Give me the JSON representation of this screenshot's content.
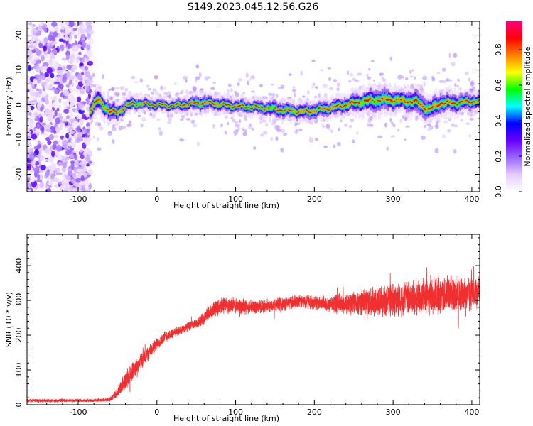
{
  "figure": {
    "title": "S149.2023.045.12.56.G26"
  },
  "chart_data": [
    {
      "type": "heatmap",
      "xlabel": "Height of straight line (km)",
      "ylabel": "Frequency (Hz)",
      "xlim": [
        -165,
        410
      ],
      "ylim": [
        -25,
        24
      ],
      "xticks": [
        -100,
        0,
        100,
        200,
        300,
        400
      ],
      "yticks": [
        -20,
        -10,
        0,
        10,
        20
      ],
      "grid": false,
      "colorbar": {
        "label": "Normalized spectral amplitude",
        "range": [
          0,
          0.96
        ],
        "ticks": [
          "0.0",
          "0.2",
          "0.4",
          "0.6",
          "0.8"
        ],
        "tick_values": [
          0,
          0.2,
          0.4,
          0.6,
          0.8
        ],
        "colormap": [
          "#ffffff",
          "#e6ccff",
          "#9966ff",
          "#6600ff",
          "#0000ff",
          "#00ffff",
          "#00ff00",
          "#ffff00",
          "#ff8000",
          "#ff0000",
          "#ff0080"
        ]
      },
      "noise_region": {
        "x": [
          -165,
          -83
        ],
        "typical_amplitude": 0.25
      },
      "ridge": {
        "description_points_x": [
          -85,
          -75,
          -60,
          -50,
          -40,
          -30,
          -20,
          0,
          20,
          40,
          55,
          70,
          90,
          110,
          130,
          150,
          170,
          190,
          210,
          230,
          250,
          270,
          290,
          310,
          330,
          345,
          360,
          380,
          400,
          410
        ],
        "frequency_hz": [
          -1.5,
          1.5,
          -2,
          -2.2,
          -0.5,
          0.5,
          0.2,
          0,
          -0.3,
          0.2,
          0.6,
          0.5,
          -0.2,
          -0.5,
          -0.8,
          -1.2,
          -1.8,
          -2,
          -1.3,
          -0.5,
          0.5,
          1.2,
          1.5,
          1.2,
          0.8,
          -1.5,
          0.5,
          0.5,
          1.0,
          0.9
        ],
        "width_hz": [
          4,
          5,
          4,
          3.5,
          3,
          3,
          2.5,
          2.5,
          2.5,
          3,
          3.5,
          3,
          3,
          3,
          3,
          3.5,
          3.5,
          3.5,
          3.5,
          3.5,
          4,
          5,
          5,
          4.5,
          5,
          5,
          4.5,
          4,
          3.5,
          3.5
        ]
      }
    },
    {
      "type": "line",
      "xlabel": "Height of straight line (km)",
      "ylabel": "SNR (10 * v/v)",
      "xlim": [
        -165,
        410
      ],
      "ylim": [
        0,
        490
      ],
      "xticks": [
        -100,
        0,
        100,
        200,
        300,
        400
      ],
      "yticks": [
        0,
        100,
        200,
        300,
        400
      ],
      "grid": false,
      "color": "#f03030",
      "series": [
        {
          "x": [
            -165,
            -120,
            -80,
            -60,
            -50,
            -40,
            -30,
            -20,
            -10,
            0,
            10,
            20,
            30,
            40,
            50,
            60,
            70,
            80,
            100,
            120,
            140,
            160,
            180,
            200,
            220,
            240,
            260,
            280,
            300,
            320,
            340,
            360,
            380,
            400,
            410
          ],
          "values": [
            12,
            12,
            12,
            15,
            35,
            70,
            100,
            125,
            150,
            175,
            195,
            205,
            215,
            225,
            232,
            250,
            270,
            285,
            285,
            280,
            285,
            290,
            295,
            295,
            290,
            290,
            295,
            300,
            300,
            305,
            310,
            315,
            320,
            320,
            325
          ],
          "noise_amplitude": [
            4,
            4,
            4,
            5,
            15,
            25,
            25,
            22,
            20,
            18,
            15,
            13,
            12,
            12,
            12,
            18,
            22,
            22,
            22,
            20,
            18,
            18,
            18,
            20,
            22,
            28,
            35,
            40,
            45,
            48,
            50,
            52,
            50,
            45,
            40
          ]
        }
      ]
    }
  ]
}
